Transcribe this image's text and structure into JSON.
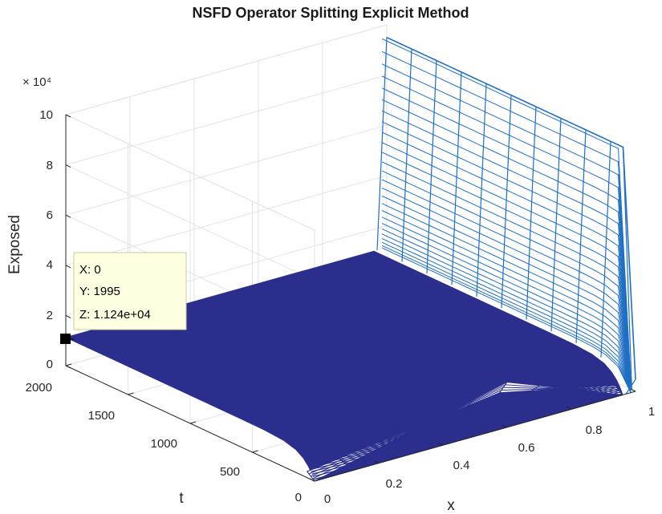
{
  "chart_data": {
    "type": "surface",
    "title": "NSFD Operator Splitting Explicit Method",
    "xlabel": "x",
    "ylabel": "t",
    "zlabel": "Exposed",
    "z_exponent": "× 10⁴",
    "xlim": [
      0,
      1
    ],
    "ylim": [
      0,
      2000
    ],
    "zlim": [
      0,
      100000
    ],
    "x_ticks": [
      "0",
      "0.2",
      "0.4",
      "0.6",
      "0.8",
      "1"
    ],
    "y_ticks": [
      "0",
      "500",
      "1000",
      "1500",
      "2000"
    ],
    "z_ticks": [
      "0",
      "2",
      "4",
      "6",
      "8",
      "10"
    ],
    "grid": true,
    "colors": {
      "surface": "#2b2e8c",
      "mesh": "#1f6fc4",
      "datatip_bg": "#ffffe1"
    },
    "description_values": {
      "interior_level_late": 11240,
      "boundary_x1_level_late": 95000,
      "initial_peak_x": 0.6,
      "initial_peak_value": 18000
    },
    "datatip": {
      "x_label": "X: 0",
      "y_label": "Y: 1995",
      "z_label": "Z: 1.124e+04",
      "x": 0,
      "y": 1995,
      "z": 11240
    }
  }
}
